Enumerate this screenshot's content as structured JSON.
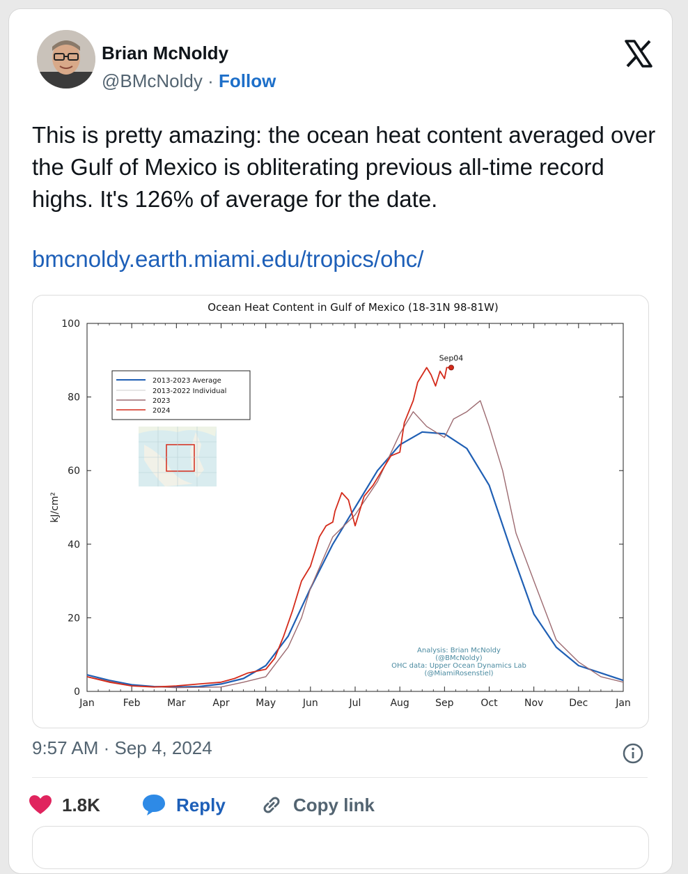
{
  "author": {
    "name": "Brian McNoldy",
    "handle": "@BMcNoldy",
    "separator": "·",
    "follow_label": "Follow"
  },
  "tweet": {
    "text": "This is pretty amazing: the ocean heat content averaged over the Gulf of Mexico is obliterating previous all-time record highs. It's 126% of average for the date.",
    "link": "bmcnoldy.earth.miami.edu/tropics/ohc/",
    "timestamp": "9:57 AM · Sep 4, 2024"
  },
  "actions": {
    "like_count": "1.8K",
    "reply_label": "Reply",
    "copy_link_label": "Copy link"
  },
  "icons": {
    "logo": "x-logo-icon",
    "info": "info-icon",
    "like": "heart-icon",
    "reply": "speech-bubble-icon",
    "copy": "link-icon"
  },
  "colors": {
    "follow": "#1d6fc9",
    "link": "#1d5fb8",
    "heart": "#e0245e",
    "reply_bubble": "#2e8ae6",
    "avg_line": "#1f5fb4",
    "line_2023": "#9c6a70",
    "line_2024": "#d42a1a"
  },
  "chart_data": {
    "type": "line",
    "title": "Ocean Heat Content in Gulf of Mexico (18-31N 98-81W)",
    "ylabel": "kJ/cm²",
    "xlabel": "",
    "ylim": [
      0,
      100
    ],
    "yticks": [
      0,
      20,
      40,
      60,
      80,
      100
    ],
    "xlim": [
      0,
      12
    ],
    "months": [
      "Jan",
      "Feb",
      "Mar",
      "Apr",
      "May",
      "Jun",
      "Jul",
      "Aug",
      "Sep",
      "Oct",
      "Nov",
      "Dec",
      "Jan"
    ],
    "legend": {
      "placement": "upper-left",
      "entries": [
        "2013-2023 Average",
        "2013-2022 Individual",
        "2023",
        "2024"
      ]
    },
    "annotation_marker": "Sep04",
    "credits": [
      "Analysis: Brian McNoldy",
      "(@BMcNoldy)",
      "OHC data: Upper Ocean Dynamics Lab",
      "(@MiamiRosenstiel)"
    ],
    "grid": false,
    "series": [
      {
        "name": "2013-2023 Average",
        "x": [
          0,
          0.5,
          1,
          1.5,
          2,
          2.5,
          3,
          3.5,
          4,
          4.5,
          5,
          5.5,
          6,
          6.5,
          7,
          7.5,
          8,
          8.5,
          9,
          9.5,
          10,
          10.5,
          11,
          11.5,
          12
        ],
        "y": [
          4.5,
          3,
          1.8,
          1.3,
          1.2,
          1.3,
          2,
          3.5,
          7,
          15,
          28,
          40,
          50,
          60,
          67,
          70.5,
          70,
          66,
          56,
          38,
          21,
          12,
          7,
          5,
          3
        ]
      },
      {
        "name": "2023",
        "x": [
          0,
          1,
          2,
          3,
          3.5,
          4,
          4.5,
          4.8,
          5,
          5.5,
          6,
          6.5,
          7,
          7.3,
          7.6,
          8,
          8.2,
          8.5,
          8.8,
          9,
          9.3,
          9.6,
          10,
          10.5,
          11,
          11.5,
          12
        ],
        "y": [
          4,
          1.5,
          1,
          1.2,
          2.5,
          4,
          12,
          20,
          28,
          42,
          48,
          57,
          70,
          76,
          72,
          69,
          74,
          76,
          79,
          72,
          60,
          43,
          30,
          14,
          8,
          4,
          2.5
        ]
      },
      {
        "name": "2024",
        "x": [
          0,
          0.5,
          1,
          1.5,
          2,
          2.5,
          3,
          3.3,
          3.6,
          4,
          4.2,
          4.4,
          4.6,
          4.8,
          5,
          5.1,
          5.2,
          5.35,
          5.5,
          5.55,
          5.7,
          5.85,
          6,
          6.2,
          6.4,
          6.6,
          6.8,
          7,
          7.1,
          7.2,
          7.3,
          7.4,
          7.5,
          7.6,
          7.7,
          7.8,
          7.9,
          8,
          8.05,
          8.15
        ],
        "y": [
          4,
          2.5,
          1.5,
          1.2,
          1.5,
          2,
          2.5,
          3.5,
          5,
          6,
          9,
          15,
          22,
          30,
          34,
          38,
          42,
          45,
          46,
          49,
          54,
          52,
          45,
          53,
          56,
          60,
          64,
          65,
          73,
          76,
          79,
          84,
          86,
          88,
          86,
          83,
          87,
          85,
          88,
          88
        ]
      }
    ]
  }
}
